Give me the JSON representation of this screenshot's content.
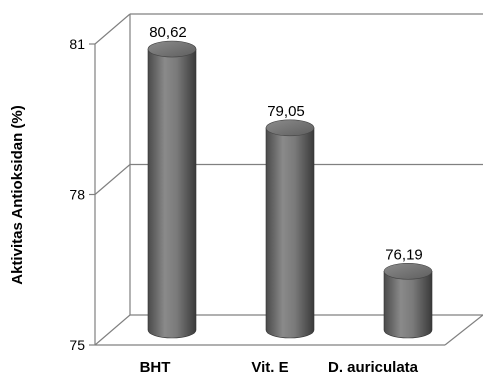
{
  "chart_data": {
    "type": "bar",
    "style": "3d-cylinder",
    "categories": [
      "BHT",
      "Vit. E",
      "D. auriculata"
    ],
    "values": [
      80.62,
      79.05,
      76.19
    ],
    "value_labels": [
      "80,62",
      "79,05",
      "76,19"
    ],
    "ylabel": "Aktivitas Antioksidan (%)",
    "xlabel": "",
    "title": "",
    "ylim": [
      75,
      81
    ],
    "yticks": [
      75,
      78,
      81
    ],
    "ytick_labels": [
      "75",
      "78",
      "81"
    ],
    "grid": true,
    "legend": "none",
    "bar_color": "#7a7a7a"
  }
}
